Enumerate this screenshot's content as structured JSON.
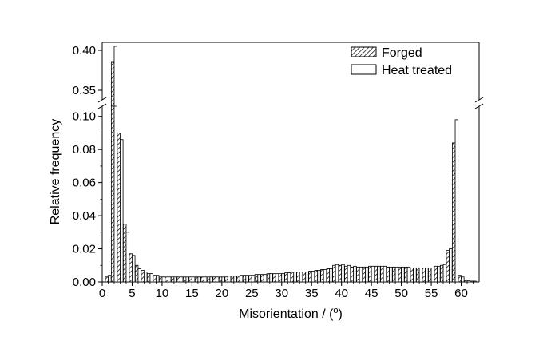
{
  "chart_data": {
    "type": "bar",
    "xlabel": "Misorientation / (",
    "xlabel_superscript": "o",
    "xlabel_suffix": ")",
    "ylabel": "Relative frequency",
    "xlim": [
      0,
      63
    ],
    "ylim_lower": [
      0,
      0.11
    ],
    "ylim_upper": [
      0.33,
      0.41
    ],
    "broken_axis": true,
    "x_ticks": [
      "0",
      "5",
      "10",
      "15",
      "20",
      "25",
      "30",
      "35",
      "40",
      "45",
      "50",
      "55",
      "60"
    ],
    "y_ticks_lower": [
      "0.00",
      "0.02",
      "0.04",
      "0.06",
      "0.08",
      "0.10"
    ],
    "y_ticks_upper": [
      "0.35",
      "0.40"
    ],
    "legend_position": "top-right",
    "x": [
      1,
      2,
      3,
      4,
      5,
      6,
      7,
      8,
      9,
      10,
      11,
      12,
      13,
      14,
      15,
      16,
      17,
      18,
      19,
      20,
      21,
      22,
      23,
      24,
      25,
      26,
      27,
      28,
      29,
      30,
      31,
      32,
      33,
      34,
      35,
      36,
      37,
      38,
      39,
      40,
      41,
      42,
      43,
      44,
      45,
      46,
      47,
      48,
      49,
      50,
      51,
      52,
      53,
      54,
      55,
      56,
      57,
      58,
      59,
      60,
      61,
      62
    ],
    "series": [
      {
        "name": "Forged",
        "pattern": "hatched",
        "values": [
          0.003,
          0.385,
          0.09,
          0.035,
          0.017,
          0.01,
          0.007,
          0.005,
          0.004,
          0.003,
          0.003,
          0.003,
          0.003,
          0.003,
          0.003,
          0.003,
          0.003,
          0.003,
          0.003,
          0.003,
          0.003,
          0.0035,
          0.0035,
          0.004,
          0.004,
          0.0045,
          0.0045,
          0.005,
          0.005,
          0.005,
          0.0055,
          0.006,
          0.006,
          0.006,
          0.0065,
          0.007,
          0.0075,
          0.008,
          0.01,
          0.01,
          0.0095,
          0.009,
          0.009,
          0.009,
          0.0095,
          0.0095,
          0.0095,
          0.009,
          0.009,
          0.009,
          0.009,
          0.0085,
          0.0085,
          0.0085,
          0.0085,
          0.0095,
          0.01,
          0.019,
          0.084,
          0.004,
          0.001,
          0.0005
        ]
      },
      {
        "name": "Heat treated",
        "pattern": "open",
        "values": [
          0.004,
          0.405,
          0.086,
          0.03,
          0.016,
          0.008,
          0.006,
          0.005,
          0.004,
          0.003,
          0.003,
          0.003,
          0.003,
          0.003,
          0.003,
          0.003,
          0.003,
          0.003,
          0.003,
          0.003,
          0.0035,
          0.0035,
          0.004,
          0.004,
          0.004,
          0.0045,
          0.0045,
          0.005,
          0.005,
          0.005,
          0.0055,
          0.006,
          0.006,
          0.006,
          0.0065,
          0.007,
          0.0075,
          0.008,
          0.0105,
          0.0105,
          0.01,
          0.0095,
          0.009,
          0.009,
          0.0095,
          0.0095,
          0.0095,
          0.009,
          0.009,
          0.009,
          0.009,
          0.0085,
          0.0085,
          0.0085,
          0.0085,
          0.0095,
          0.0105,
          0.02,
          0.098,
          0.003,
          0.0008,
          0.0005
        ]
      }
    ]
  }
}
